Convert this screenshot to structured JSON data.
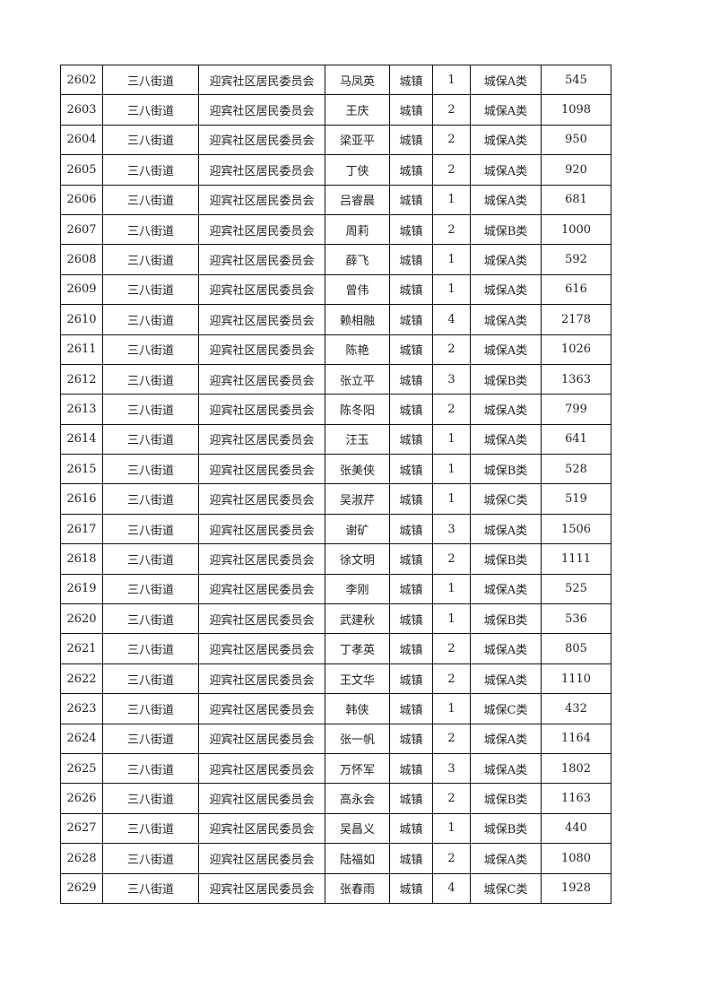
{
  "table": {
    "rows": [
      [
        "2602",
        "三八街道",
        "迎宾社区居民委员会",
        "马凤英",
        "城镇",
        "1",
        "城保A类",
        "545"
      ],
      [
        "2603",
        "三八街道",
        "迎宾社区居民委员会",
        "王庆",
        "城镇",
        "2",
        "城保A类",
        "1098"
      ],
      [
        "2604",
        "三八街道",
        "迎宾社区居民委员会",
        "梁亚平",
        "城镇",
        "2",
        "城保A类",
        "950"
      ],
      [
        "2605",
        "三八街道",
        "迎宾社区居民委员会",
        "丁侠",
        "城镇",
        "2",
        "城保A类",
        "920"
      ],
      [
        "2606",
        "三八街道",
        "迎宾社区居民委员会",
        "吕睿晨",
        "城镇",
        "1",
        "城保A类",
        "681"
      ],
      [
        "2607",
        "三八街道",
        "迎宾社区居民委员会",
        "周莉",
        "城镇",
        "2",
        "城保B类",
        "1000"
      ],
      [
        "2608",
        "三八街道",
        "迎宾社区居民委员会",
        "薛飞",
        "城镇",
        "1",
        "城保A类",
        "592"
      ],
      [
        "2609",
        "三八街道",
        "迎宾社区居民委员会",
        "曾伟",
        "城镇",
        "1",
        "城保A类",
        "616"
      ],
      [
        "2610",
        "三八街道",
        "迎宾社区居民委员会",
        "赖相融",
        "城镇",
        "4",
        "城保A类",
        "2178"
      ],
      [
        "2611",
        "三八街道",
        "迎宾社区居民委员会",
        "陈艳",
        "城镇",
        "2",
        "城保A类",
        "1026"
      ],
      [
        "2612",
        "三八街道",
        "迎宾社区居民委员会",
        "张立平",
        "城镇",
        "3",
        "城保B类",
        "1363"
      ],
      [
        "2613",
        "三八街道",
        "迎宾社区居民委员会",
        "陈冬阳",
        "城镇",
        "2",
        "城保A类",
        "799"
      ],
      [
        "2614",
        "三八街道",
        "迎宾社区居民委员会",
        "汪玉",
        "城镇",
        "1",
        "城保A类",
        "641"
      ],
      [
        "2615",
        "三八街道",
        "迎宾社区居民委员会",
        "张美侠",
        "城镇",
        "1",
        "城保B类",
        "528"
      ],
      [
        "2616",
        "三八街道",
        "迎宾社区居民委员会",
        "吴淑芹",
        "城镇",
        "1",
        "城保C类",
        "519"
      ],
      [
        "2617",
        "三八街道",
        "迎宾社区居民委员会",
        "谢矿",
        "城镇",
        "3",
        "城保A类",
        "1506"
      ],
      [
        "2618",
        "三八街道",
        "迎宾社区居民委员会",
        "徐文明",
        "城镇",
        "2",
        "城保B类",
        "1111"
      ],
      [
        "2619",
        "三八街道",
        "迎宾社区居民委员会",
        "李刚",
        "城镇",
        "1",
        "城保A类",
        "525"
      ],
      [
        "2620",
        "三八街道",
        "迎宾社区居民委员会",
        "武建秋",
        "城镇",
        "1",
        "城保B类",
        "536"
      ],
      [
        "2621",
        "三八街道",
        "迎宾社区居民委员会",
        "丁孝英",
        "城镇",
        "2",
        "城保A类",
        "805"
      ],
      [
        "2622",
        "三八街道",
        "迎宾社区居民委员会",
        "王文华",
        "城镇",
        "2",
        "城保A类",
        "1110"
      ],
      [
        "2623",
        "三八街道",
        "迎宾社区居民委员会",
        "韩侠",
        "城镇",
        "1",
        "城保C类",
        "432"
      ],
      [
        "2624",
        "三八街道",
        "迎宾社区居民委员会",
        "张一帆",
        "城镇",
        "2",
        "城保A类",
        "1164"
      ],
      [
        "2625",
        "三八街道",
        "迎宾社区居民委员会",
        "万怀军",
        "城镇",
        "3",
        "城保A类",
        "1802"
      ],
      [
        "2626",
        "三八街道",
        "迎宾社区居民委员会",
        "高永会",
        "城镇",
        "2",
        "城保B类",
        "1163"
      ],
      [
        "2627",
        "三八街道",
        "迎宾社区居民委员会",
        "吴昌义",
        "城镇",
        "1",
        "城保B类",
        "440"
      ],
      [
        "2628",
        "三八街道",
        "迎宾社区居民委员会",
        "陆福如",
        "城镇",
        "2",
        "城保A类",
        "1080"
      ],
      [
        "2629",
        "三八街道",
        "迎宾社区居民委员会",
        "张春雨",
        "城镇",
        "4",
        "城保C类",
        "1928"
      ]
    ]
  }
}
